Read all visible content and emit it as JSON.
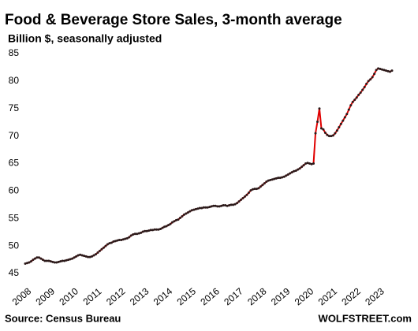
{
  "chart_data": {
    "type": "line",
    "title": "Food & Beverage Store Sales, 3-month average",
    "subtitle": "Billion $, seasonally adjusted",
    "source": "Source: Census Bureau",
    "brand": "WOLFSTREET.com",
    "categories": [
      "2008",
      null,
      null,
      null,
      null,
      null,
      null,
      null,
      null,
      null,
      null,
      null,
      "2009",
      null,
      null,
      null,
      null,
      null,
      null,
      null,
      null,
      null,
      null,
      null,
      "2010",
      null,
      null,
      null,
      null,
      null,
      null,
      null,
      null,
      null,
      null,
      null,
      "2011",
      null,
      null,
      null,
      null,
      null,
      null,
      null,
      null,
      null,
      null,
      null,
      "2012",
      null,
      null,
      null,
      null,
      null,
      null,
      null,
      null,
      null,
      null,
      null,
      "2013",
      null,
      null,
      null,
      null,
      null,
      null,
      null,
      null,
      null,
      null,
      null,
      "2014",
      null,
      null,
      null,
      null,
      null,
      null,
      null,
      null,
      null,
      null,
      null,
      "2015",
      null,
      null,
      null,
      null,
      null,
      null,
      null,
      null,
      null,
      null,
      null,
      "2016",
      null,
      null,
      null,
      null,
      null,
      null,
      null,
      null,
      null,
      null,
      null,
      "2017",
      null,
      null,
      null,
      null,
      null,
      null,
      null,
      null,
      null,
      null,
      null,
      "2018",
      null,
      null,
      null,
      null,
      null,
      null,
      null,
      null,
      null,
      null,
      null,
      "2019",
      null,
      null,
      null,
      null,
      null,
      null,
      null,
      null,
      null,
      null,
      null,
      "2020",
      null,
      null,
      null,
      null,
      null,
      null,
      null,
      null,
      null,
      null,
      null,
      "2021",
      null,
      null,
      null,
      null,
      null,
      null,
      null,
      null,
      null,
      null,
      null,
      "2022",
      null,
      null,
      null,
      null,
      null,
      null,
      null,
      null,
      null,
      null,
      null,
      "2023",
      null,
      null,
      null,
      null,
      null,
      null,
      null
    ],
    "series": [
      {
        "name": "Food & Beverage Store Sales",
        "color": "#e00000",
        "marker_color": "#2a1a1a",
        "values": [
          46.8,
          46.9,
          47.0,
          47.2,
          47.5,
          47.7,
          47.9,
          47.9,
          47.7,
          47.5,
          47.3,
          47.3,
          47.3,
          47.2,
          47.1,
          47.0,
          47.0,
          47.1,
          47.2,
          47.3,
          47.3,
          47.4,
          47.5,
          47.6,
          47.7,
          47.9,
          48.1,
          48.3,
          48.4,
          48.3,
          48.2,
          48.1,
          48.0,
          48.0,
          48.1,
          48.3,
          48.5,
          48.8,
          49.1,
          49.4,
          49.7,
          50.0,
          50.3,
          50.5,
          50.6,
          50.8,
          50.9,
          51.0,
          51.1,
          51.1,
          51.2,
          51.3,
          51.4,
          51.6,
          51.9,
          52.1,
          52.2,
          52.2,
          52.3,
          52.4,
          52.6,
          52.7,
          52.7,
          52.8,
          52.9,
          52.9,
          53.0,
          53.0,
          53.0,
          53.1,
          53.3,
          53.5,
          53.6,
          53.8,
          54.0,
          54.3,
          54.5,
          54.7,
          54.8,
          55.1,
          55.4,
          55.7,
          55.9,
          56.1,
          56.3,
          56.5,
          56.6,
          56.7,
          56.8,
          56.9,
          56.9,
          57.0,
          57.0,
          57.0,
          57.1,
          57.2,
          57.3,
          57.3,
          57.2,
          57.2,
          57.3,
          57.4,
          57.4,
          57.3,
          57.4,
          57.5,
          57.5,
          57.6,
          57.8,
          58.1,
          58.4,
          58.7,
          59.0,
          59.3,
          59.7,
          60.1,
          60.3,
          60.4,
          60.4,
          60.5,
          60.8,
          61.1,
          61.4,
          61.7,
          61.9,
          62.0,
          62.1,
          62.2,
          62.3,
          62.4,
          62.4,
          62.5,
          62.6,
          62.8,
          63.0,
          63.2,
          63.4,
          63.6,
          63.7,
          63.9,
          64.1,
          64.4,
          64.7,
          65.0,
          65.1,
          65.0,
          64.9,
          65.0,
          70.5,
          72.6,
          75.0,
          71.4,
          71.2,
          70.6,
          70.2,
          70.0,
          70.0,
          70.1,
          70.5,
          71.0,
          71.6,
          72.2,
          72.8,
          73.4,
          74.0,
          74.8,
          75.6,
          76.2,
          76.6,
          77.0,
          77.5,
          77.9,
          78.4,
          78.9,
          79.5,
          80.0,
          80.3,
          80.7,
          81.3,
          82.0,
          82.3,
          82.2,
          82.1,
          82.0,
          81.9,
          81.8,
          81.7,
          81.9
        ]
      }
    ],
    "ylim": [
      45,
      85
    ],
    "yticks": [
      45,
      50,
      55,
      60,
      65,
      70,
      75,
      80,
      85
    ],
    "grid": false
  }
}
